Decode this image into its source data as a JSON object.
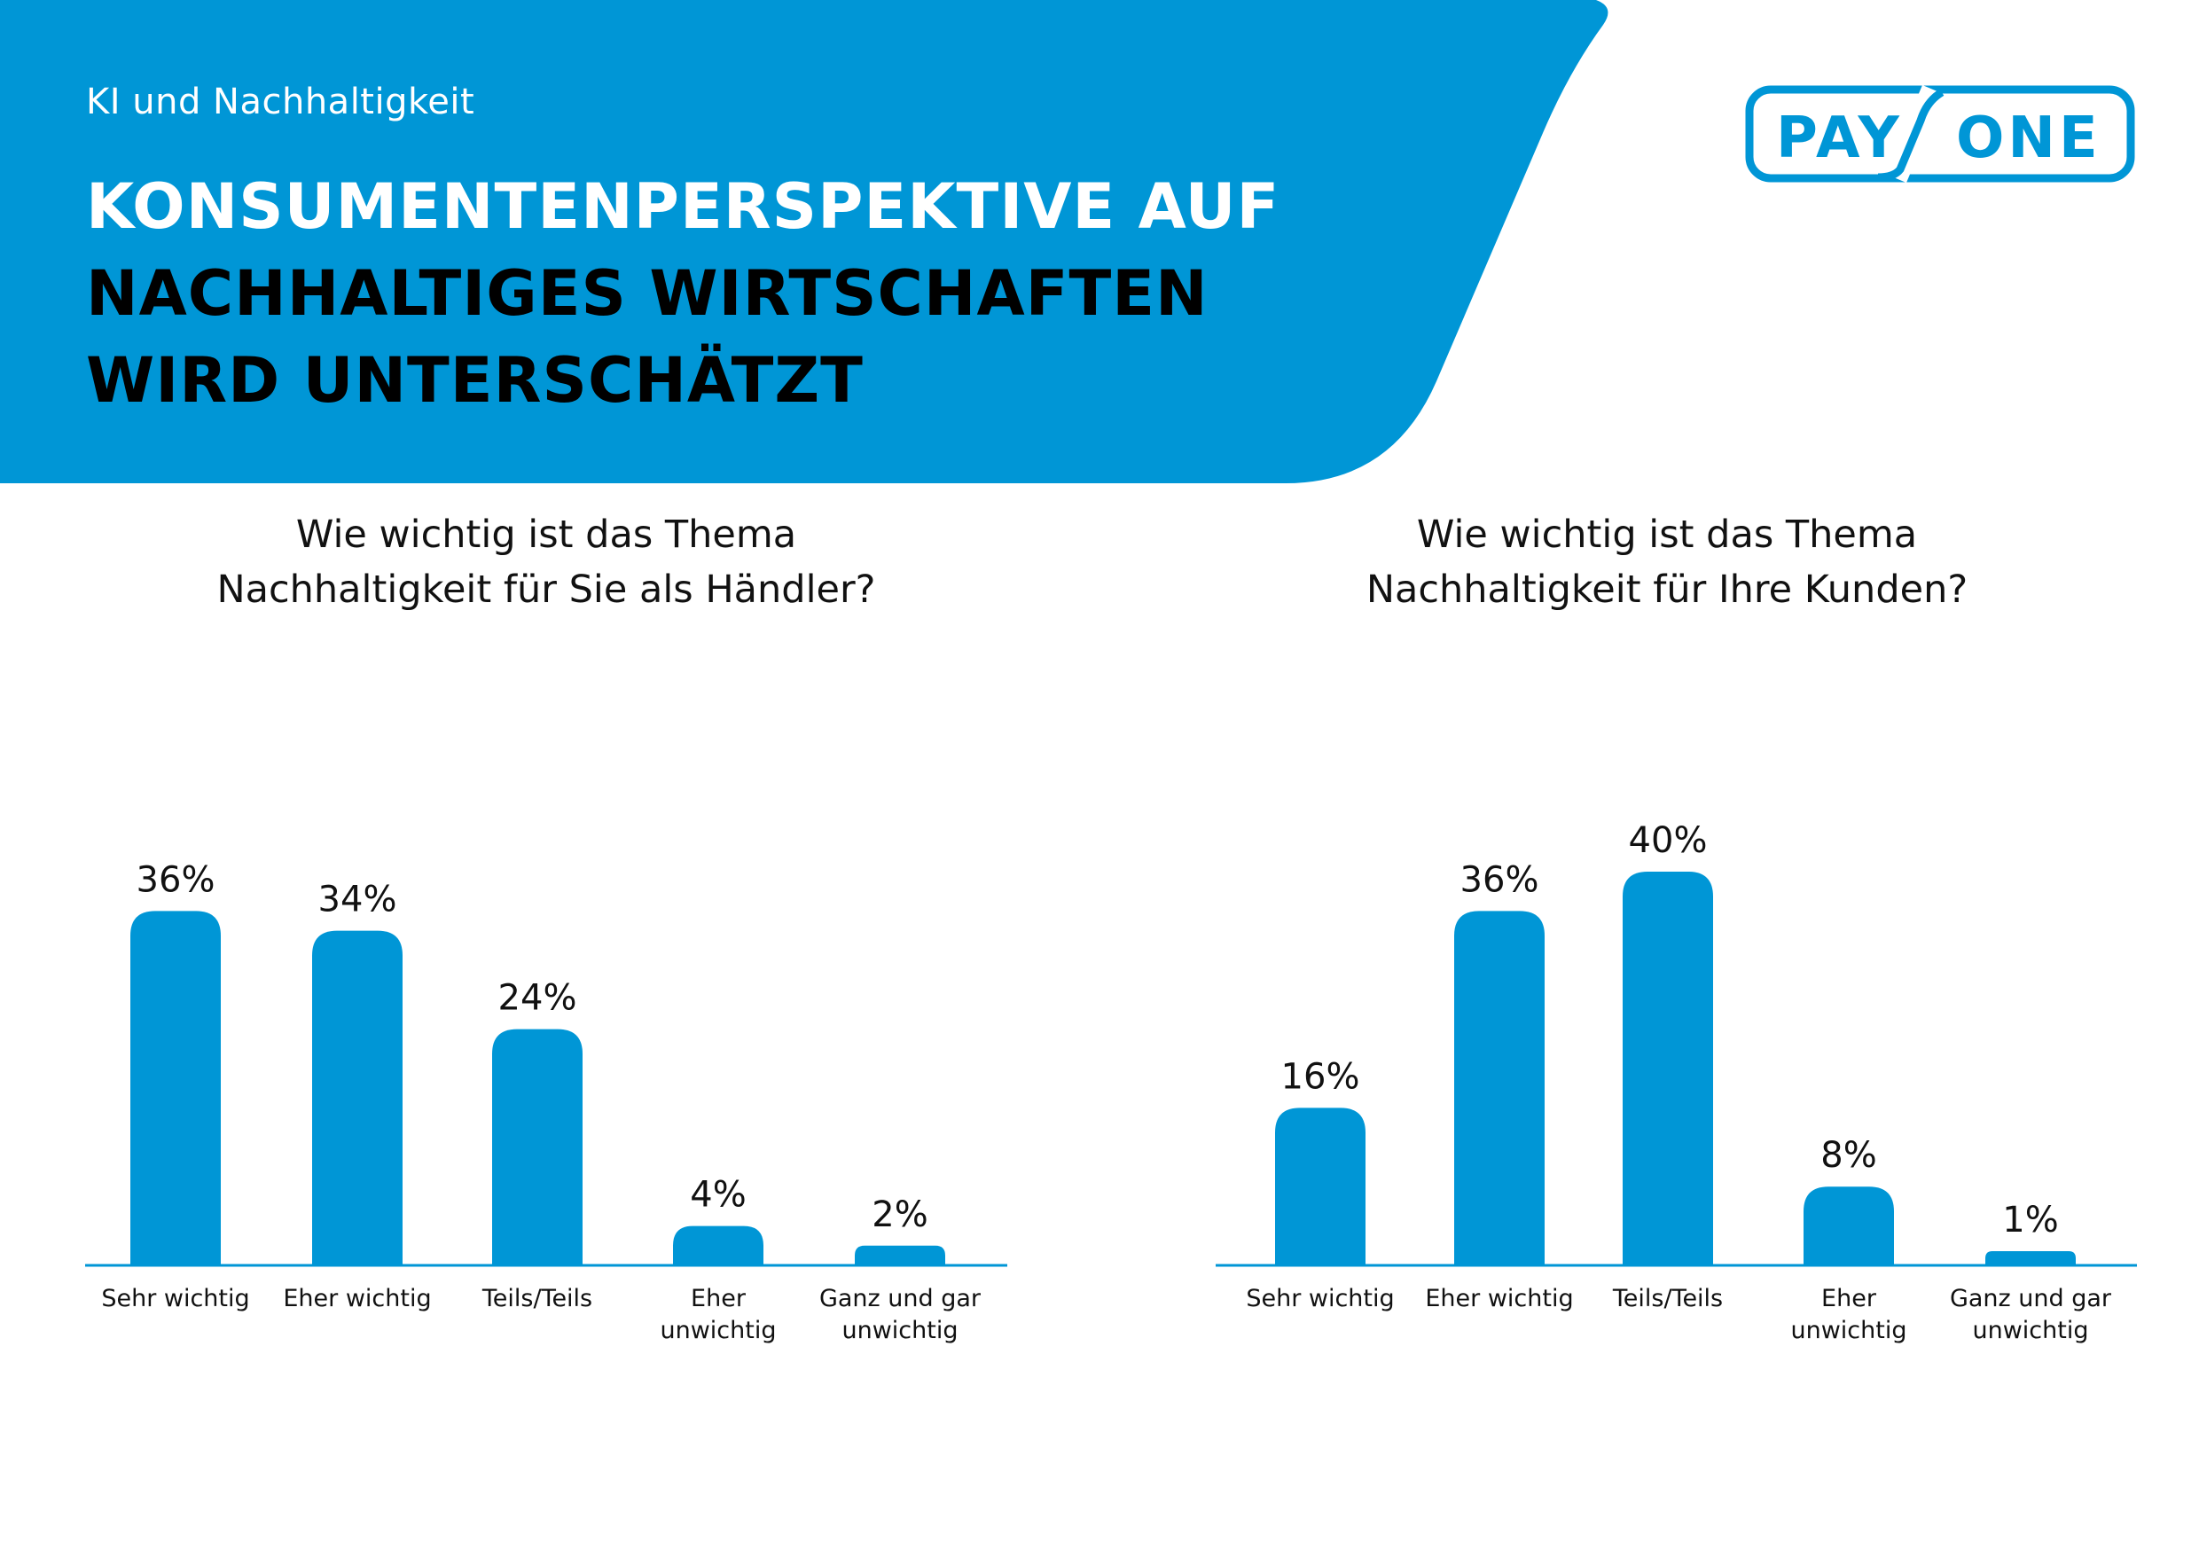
{
  "header": {
    "kicker": "KI und Nachhaltigkeit",
    "title_lines": [
      "KONSUMENTENPERSPEKTIVE AUF",
      "NACHHALTIGES WIRTSCHAFTEN",
      "WIRD UNTERSCHÄTZT"
    ]
  },
  "logo": {
    "text_left": "PAY",
    "text_right": "ONE"
  },
  "colors": {
    "brand_blue": "#0096D6",
    "bar": "#0096D6",
    "text": "#111111"
  },
  "chart_data": [
    {
      "type": "bar",
      "title": "Wie wichtig ist das Thema Nachhaltigkeit für Sie als Händler?",
      "title_lines": [
        "Wie wichtig ist das Thema",
        "Nachhaltigkeit für Sie als Händler?"
      ],
      "categories": [
        [
          "Sehr wichtig"
        ],
        [
          "Eher wichtig"
        ],
        [
          "Teils/Teils"
        ],
        [
          "Eher",
          "unwichtig"
        ],
        [
          "Ganz und gar",
          "unwichtig"
        ]
      ],
      "values": [
        36,
        34,
        24,
        4,
        2
      ],
      "labels": [
        "36%",
        "34%",
        "24%",
        "4%",
        "2%"
      ],
      "unit": "%",
      "ylim": [
        0,
        40
      ],
      "grid": false
    },
    {
      "type": "bar",
      "title": "Wie wichtig ist das Thema Nachhaltigkeit für Ihre Kunden?",
      "title_lines": [
        "Wie wichtig ist das Thema",
        "Nachhaltigkeit für Ihre Kunden?"
      ],
      "categories": [
        [
          "Sehr wichtig"
        ],
        [
          "Eher wichtig"
        ],
        [
          "Teils/Teils"
        ],
        [
          "Eher",
          "unwichtig"
        ],
        [
          "Ganz und gar",
          "unwichtig"
        ]
      ],
      "values": [
        16,
        36,
        40,
        8,
        1
      ],
      "labels": [
        "16%",
        "36%",
        "40%",
        "8%",
        "1%"
      ],
      "unit": "%",
      "ylim": [
        0,
        40
      ],
      "grid": false
    }
  ]
}
